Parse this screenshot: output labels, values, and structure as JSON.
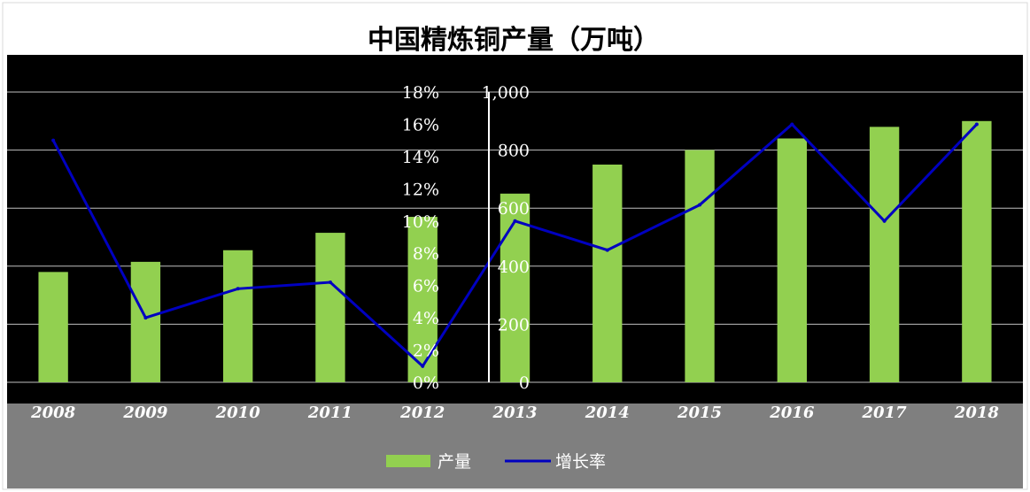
{
  "chart_data": {
    "type": "bar",
    "title": "中国精炼铜产量（万吨）",
    "categories": [
      "2008",
      "2009",
      "2010",
      "2011",
      "2012",
      "2013",
      "2014",
      "2015",
      "2016",
      "2017",
      "2018"
    ],
    "series": [
      {
        "name": "产量",
        "type": "bar",
        "axis": "left",
        "color": "#92d050",
        "values": [
          380,
          415,
          455,
          515,
          570,
          650,
          750,
          800,
          840,
          880,
          900
        ]
      },
      {
        "name": "增长率",
        "type": "line",
        "axis": "right",
        "color": "#0000c0",
        "values": [
          15.0,
          4.0,
          5.8,
          6.2,
          1.0,
          10.0,
          8.2,
          11.0,
          16.0,
          10.0,
          16.0
        ]
      }
    ],
    "y_left": {
      "ylim": [
        0,
        1000
      ],
      "ticks": [
        "0",
        "200",
        "400",
        "600",
        "800",
        "1,000"
      ]
    },
    "y_right": {
      "ylim": [
        0,
        18
      ],
      "ticks": [
        "0%",
        "2%",
        "4%",
        "6%",
        "8%",
        "10%",
        "12%",
        "14%",
        "16%",
        "18%"
      ]
    },
    "legend_position": "bottom",
    "grid": true
  }
}
